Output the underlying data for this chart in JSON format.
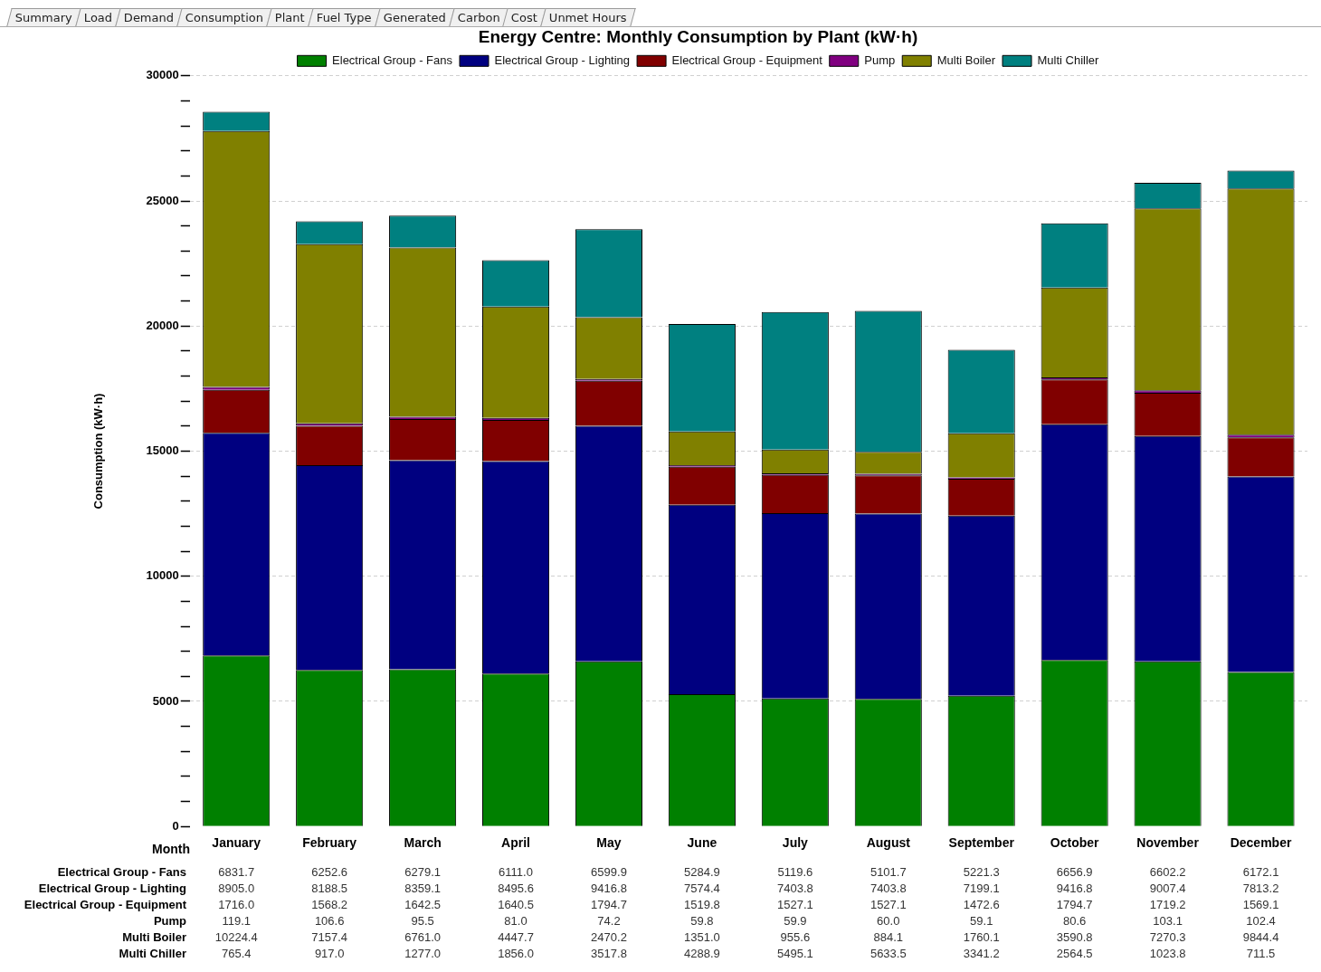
{
  "chart_data": {
    "type": "bar",
    "stacked": true,
    "title": "Energy Centre: Monthly Consumption by Plant (kW·h)",
    "xlabel": "Month",
    "ylabel": "Consumption (kW·h)",
    "categories": [
      "January",
      "February",
      "March",
      "April",
      "May",
      "June",
      "July",
      "August",
      "September",
      "October",
      "November",
      "December"
    ],
    "series": [
      {
        "name": "Electrical Group - Fans",
        "color": "#008000",
        "values": [
          6831.7,
          6252.6,
          6279.1,
          6111.0,
          6599.9,
          5284.9,
          5119.6,
          5101.7,
          5221.3,
          6656.9,
          6602.2,
          6172.1
        ],
        "value_labels": [
          "6831.7",
          "6252.6",
          "6279.1",
          "6111.0",
          "6599.9",
          "5284.9",
          "5119.6",
          "5101.7",
          "5221.3",
          "6656.9",
          "6602.2",
          "6172.1"
        ]
      },
      {
        "name": "Electrical Group - Lighting",
        "color": "#000080",
        "values": [
          8905.0,
          8188.5,
          8359.1,
          8495.6,
          9416.8,
          7574.4,
          7403.8,
          7403.8,
          7199.1,
          9416.8,
          9007.4,
          7813.2
        ],
        "value_labels": [
          "8905.0",
          "8188.5",
          "8359.1",
          "8495.6",
          "9416.8",
          "7574.4",
          "7403.8",
          "7403.8",
          "7199.1",
          "9416.8",
          "9007.4",
          "7813.2"
        ]
      },
      {
        "name": "Electrical Group - Equipment",
        "color": "#800000",
        "values": [
          1716.0,
          1568.2,
          1642.5,
          1640.5,
          1794.7,
          1519.8,
          1527.1,
          1527.1,
          1472.6,
          1794.7,
          1719.2,
          1569.1
        ],
        "value_labels": [
          "1716.0",
          "1568.2",
          "1642.5",
          "1640.5",
          "1794.7",
          "1519.8",
          "1527.1",
          "1527.1",
          "1472.6",
          "1794.7",
          "1719.2",
          "1569.1"
        ]
      },
      {
        "name": "Pump",
        "color": "#800080",
        "values": [
          119.1,
          106.6,
          95.5,
          81.0,
          74.2,
          59.8,
          59.9,
          60.0,
          59.1,
          80.6,
          103.1,
          102.4
        ],
        "value_labels": [
          "119.1",
          "106.6",
          "95.5",
          "81.0",
          "74.2",
          "59.8",
          "59.9",
          "60.0",
          "59.1",
          "80.6",
          "103.1",
          "102.4"
        ]
      },
      {
        "name": "Multi Boiler",
        "color": "#808000",
        "values": [
          10224.4,
          7157.4,
          6761.0,
          4447.7,
          2470.2,
          1351.0,
          955.6,
          884.1,
          1760.1,
          3590.8,
          7270.3,
          9844.4
        ],
        "value_labels": [
          "10224.4",
          "7157.4",
          "6761.0",
          "4447.7",
          "2470.2",
          "1351.0",
          "955.6",
          "884.1",
          "1760.1",
          "3590.8",
          "7270.3",
          "9844.4"
        ]
      },
      {
        "name": "Multi Chiller",
        "color": "#008080",
        "values": [
          765.4,
          917.0,
          1277.0,
          1856.0,
          3517.8,
          4288.9,
          5495.1,
          5633.5,
          3341.2,
          2564.5,
          1023.8,
          711.5
        ],
        "value_labels": [
          "765.4",
          "917.0",
          "1277.0",
          "1856.0",
          "3517.8",
          "4288.9",
          "5495.1",
          "5633.5",
          "3341.2",
          "2564.5",
          "1023.8",
          "711.5"
        ]
      }
    ],
    "ylim": [
      0,
      30000
    ],
    "yticks": [
      0,
      {
        "value": 1000,
        "label": null
      },
      {
        "value": 2000,
        "label": null
      },
      {
        "value": 3000,
        "label": null
      },
      {
        "value": 4000,
        "label": null
      },
      5000,
      {
        "value": 6000,
        "label": null
      },
      {
        "value": 7000,
        "label": null
      },
      {
        "value": 8000,
        "label": null
      },
      {
        "value": 9000,
        "label": null
      },
      10000,
      {
        "value": 11000,
        "label": null
      },
      {
        "value": 12000,
        "label": null
      },
      {
        "value": 13000,
        "label": null
      },
      {
        "value": 14000,
        "label": null
      },
      15000,
      {
        "value": 16000,
        "label": null
      },
      {
        "value": 17000,
        "label": null
      },
      {
        "value": 18000,
        "label": null
      },
      {
        "value": 19000,
        "label": null
      },
      20000,
      {
        "value": 21000,
        "label": null
      },
      {
        "value": 22000,
        "label": null
      },
      {
        "value": 23000,
        "label": null
      },
      {
        "value": 24000,
        "label": null
      },
      25000,
      {
        "value": 26000,
        "label": null
      },
      {
        "value": 27000,
        "label": null
      },
      {
        "value": 28000,
        "label": null
      },
      {
        "value": 29000,
        "label": null
      },
      30000
    ],
    "grid": "y",
    "legend": "top",
    "annotations": [
      "Summary",
      "Load",
      "Demand",
      "Consumption",
      "Plant",
      "Fuel Type",
      "Generated",
      "Carbon",
      "Cost",
      "Unmet Hours"
    ]
  }
}
